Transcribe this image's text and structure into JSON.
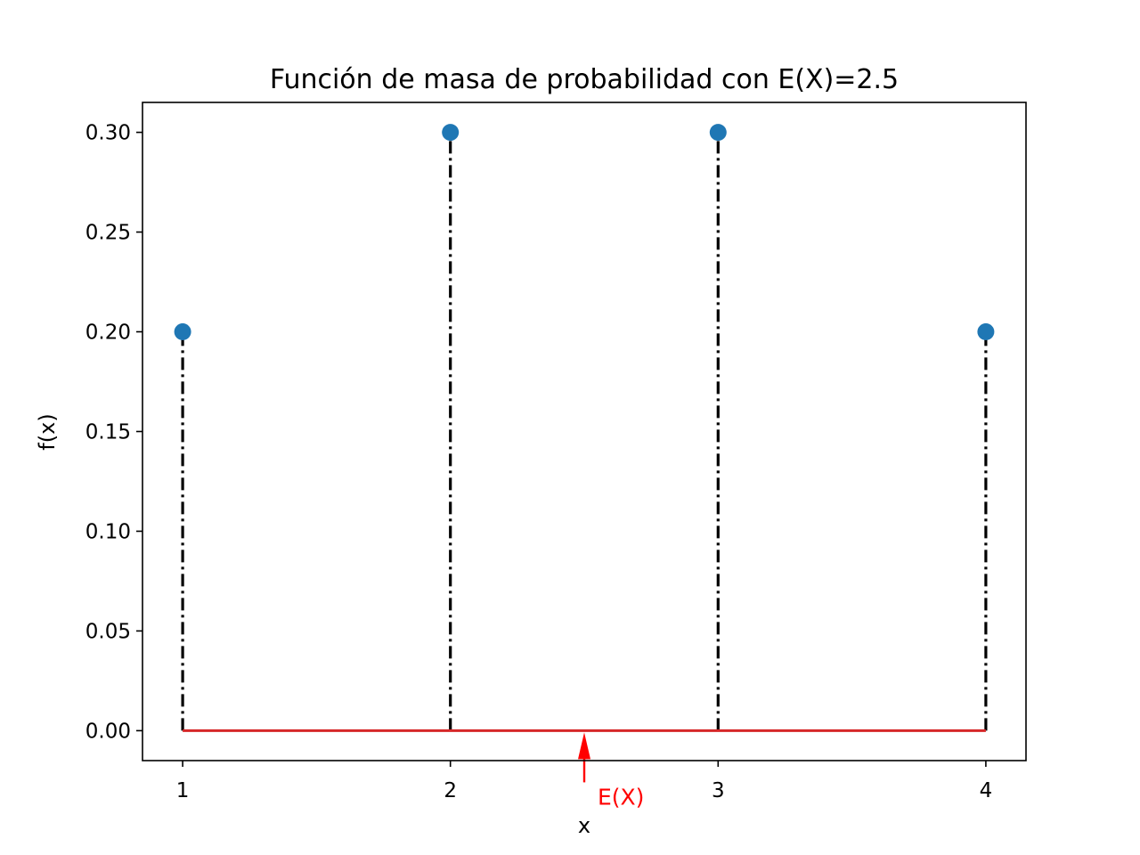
{
  "chart_data": {
    "type": "stem",
    "title": "Función de masa de probabilidad con E(X)=2.5",
    "xlabel": "x",
    "ylabel": "f(x)",
    "x": [
      1,
      2,
      3,
      4
    ],
    "values": [
      0.2,
      0.3,
      0.3,
      0.2
    ],
    "xlim": [
      0.85,
      4.15
    ],
    "ylim": [
      -0.015,
      0.315
    ],
    "xticks": [
      1,
      2,
      3,
      4
    ],
    "xtick_labels": [
      "1",
      "2",
      "3",
      "4"
    ],
    "yticks": [
      0,
      0.05,
      0.1,
      0.15,
      0.2,
      0.25,
      0.3
    ],
    "ytick_labels": [
      "0.00",
      "0.05",
      "0.10",
      "0.15",
      "0.20",
      "0.25",
      "0.30"
    ],
    "grid": false,
    "stem_line_style": "dash-dot",
    "annotation": {
      "text": "E(X)",
      "x": 2.5,
      "y": 0
    },
    "colors": {
      "marker": "#1f77b4",
      "stem": "#000000",
      "baseline": "#d62728",
      "annotation": "#ff0000"
    }
  }
}
